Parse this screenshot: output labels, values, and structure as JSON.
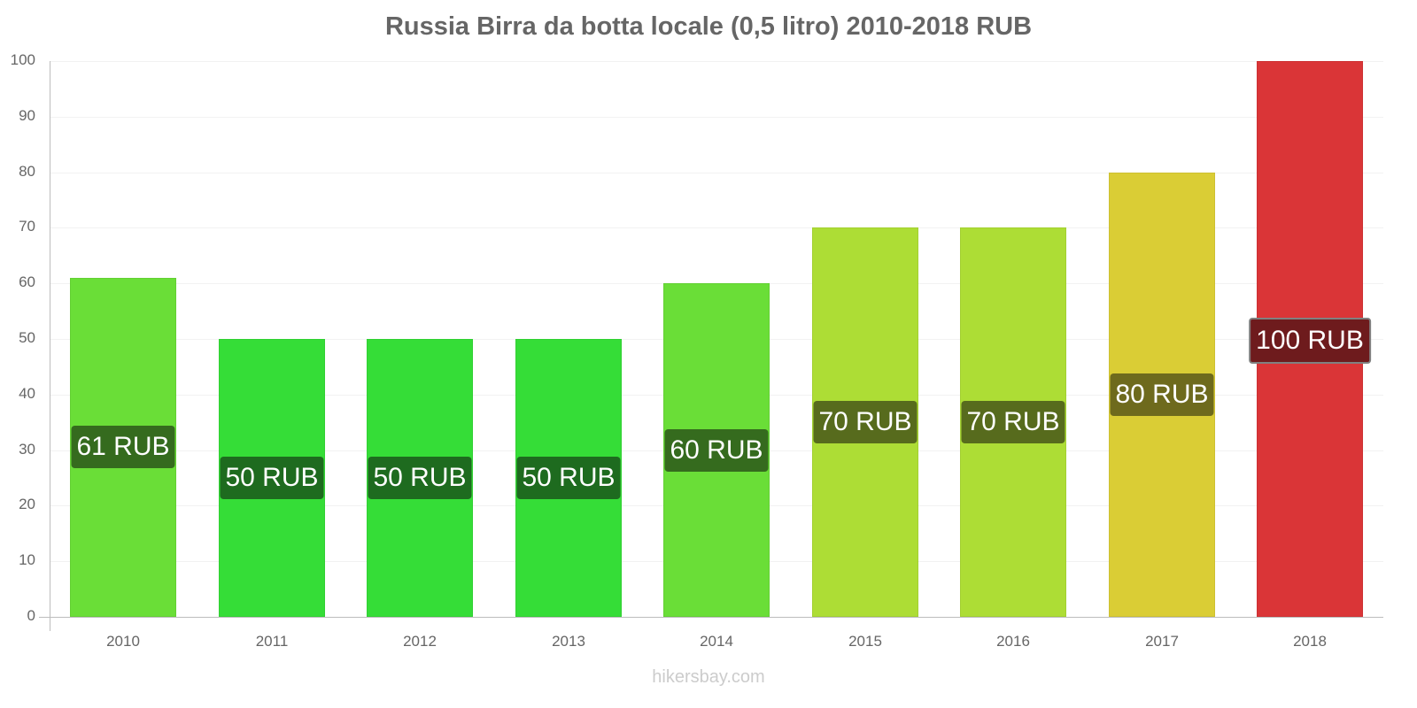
{
  "title": "Russia Birra da botta locale (0,5 litro) 2010-2018 RUB",
  "watermark": "hikersbay.com",
  "y_ticks": [
    "0",
    "10",
    "20",
    "30",
    "40",
    "50",
    "60",
    "70",
    "80",
    "90",
    "100"
  ],
  "bars": [
    {
      "year": "2010",
      "value": 61,
      "label": "61 RUB",
      "color": "#6ade37",
      "label_bg": "#356b1e"
    },
    {
      "year": "2011",
      "value": 50,
      "label": "50 RUB",
      "color": "#35dd37",
      "label_bg": "#1e6b1f"
    },
    {
      "year": "2012",
      "value": 50,
      "label": "50 RUB",
      "color": "#35dd37",
      "label_bg": "#1e6b1f"
    },
    {
      "year": "2013",
      "value": 50,
      "label": "50 RUB",
      "color": "#35dd37",
      "label_bg": "#1e6b1f"
    },
    {
      "year": "2014",
      "value": 60,
      "label": "60 RUB",
      "color": "#6ade37",
      "label_bg": "#356b1e"
    },
    {
      "year": "2015",
      "value": 70,
      "label": "70 RUB",
      "color": "#addd35",
      "label_bg": "#576b1d"
    },
    {
      "year": "2016",
      "value": 70,
      "label": "70 RUB",
      "color": "#addd35",
      "label_bg": "#576b1d"
    },
    {
      "year": "2017",
      "value": 80,
      "label": "80 RUB",
      "color": "#dacd35",
      "label_bg": "#6e6a1d"
    },
    {
      "year": "2018",
      "value": 100,
      "label": "100 RUB",
      "color": "#da3537",
      "label_bg": "#6e1b1d"
    }
  ],
  "chart_data": {
    "type": "bar",
    "title": "Russia Birra da botta locale (0,5 litro) 2010-2018 RUB",
    "categories": [
      "2010",
      "2011",
      "2012",
      "2013",
      "2014",
      "2015",
      "2016",
      "2017",
      "2018"
    ],
    "values": [
      61,
      50,
      50,
      50,
      60,
      70,
      70,
      80,
      100
    ],
    "data_labels": [
      "61 RUB",
      "50 RUB",
      "50 RUB",
      "50 RUB",
      "60 RUB",
      "70 RUB",
      "70 RUB",
      "80 RUB",
      "100 RUB"
    ],
    "xlabel": "",
    "ylabel": "",
    "ylim": [
      0,
      100
    ],
    "yticks": [
      0,
      10,
      20,
      30,
      40,
      50,
      60,
      70,
      80,
      90,
      100
    ],
    "grid": true,
    "legend": "none",
    "annotations": [
      "hikersbay.com"
    ]
  }
}
